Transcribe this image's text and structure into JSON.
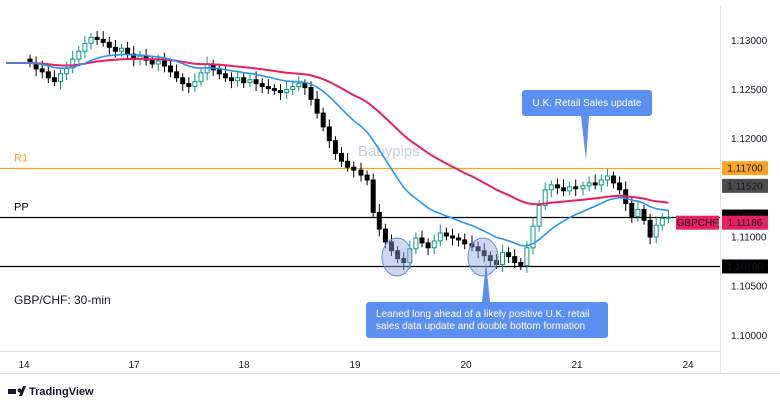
{
  "chart_data": {
    "type": "candlestick",
    "symbol": "GBPCHF",
    "pair_label": "GBP/CHF: 30-min",
    "watermark": "Babypips",
    "brand": "TradingView",
    "x_ticks": [
      "14",
      "17",
      "18",
      "19",
      "20",
      "21",
      "24"
    ],
    "y_ticks": [
      "1.13000",
      "1.12500",
      "1.12000",
      "1.11500",
      "1.11000",
      "1.10500",
      "1.10000"
    ],
    "ylim": [
      1.0985,
      1.1335
    ],
    "levels": [
      {
        "name": "R1",
        "value": 1.117,
        "label": "1.11700",
        "color": "#f7a425"
      },
      {
        "name": "PP",
        "value": 1.11208,
        "label": "1.11208",
        "color": "#000000"
      },
      {
        "name": "",
        "value": 1.107,
        "label": "1.10700",
        "color": "#000000"
      }
    ],
    "price_tags": [
      {
        "label": "1.11520",
        "value": 1.1152,
        "color": "#4b4b4b"
      },
      {
        "label": "1.11186",
        "value": 1.11186,
        "color": "#e91e63"
      }
    ],
    "symbol_tag_color": "#e91e63",
    "annotations": [
      {
        "text": "U.K. Retail Sales update"
      },
      {
        "text_lines": [
          "Leaned long ahead of a likely positive U.K. retail",
          "sales data update and double bottom formation"
        ]
      }
    ],
    "moving_averages": [
      {
        "color": "#2196f3"
      },
      {
        "color": "#e91e63"
      }
    ],
    "colors": {
      "up": "#089981",
      "down": "#000000",
      "callout": "#5b8ff0",
      "circle": "#8ea6e3"
    },
    "close_series": [
      {
        "day": "14",
        "closes": [
          1.1277,
          1.1271,
          1.1268,
          1.1262,
          1.1258,
          1.1266,
          1.1272,
          1.1281,
          1.1289,
          1.1297,
          1.1303,
          1.1301,
          1.1298,
          1.1293,
          1.1289,
          1.1292,
          1.1286,
          1.1281
        ]
      },
      {
        "day": "17",
        "closes": [
          1.1284,
          1.128,
          1.1276,
          1.1279,
          1.1274,
          1.1268,
          1.1262,
          1.1256,
          1.1253,
          1.1258,
          1.1267,
          1.1276,
          1.127,
          1.1266,
          1.1262,
          1.1259,
          1.1262,
          1.1257
        ]
      },
      {
        "day": "18",
        "closes": [
          1.126,
          1.1256,
          1.1253,
          1.1251,
          1.1249,
          1.1247,
          1.125,
          1.1253,
          1.1256,
          1.1252,
          1.124,
          1.1226,
          1.1212,
          1.1198,
          1.1185,
          1.1177,
          1.1171,
          1.1168
        ]
      },
      {
        "day": "19",
        "closes": [
          1.1163,
          1.1158,
          1.1125,
          1.1108,
          1.1095,
          1.1086,
          1.1078,
          1.1074,
          1.1088,
          1.1099,
          1.1094,
          1.1089,
          1.1096,
          1.1104,
          1.1101,
          1.1099,
          1.1097,
          1.1093
        ]
      },
      {
        "day": "20",
        "closes": [
          1.109,
          1.1086,
          1.1081,
          1.1076,
          1.1072,
          1.1084,
          1.108,
          1.1074,
          1.1071,
          1.1089,
          1.1111,
          1.1132,
          1.1148,
          1.1153,
          1.115,
          1.1147,
          1.1151,
          1.1149
        ]
      },
      {
        "day": "21",
        "closes": [
          1.1152,
          1.1155,
          1.1153,
          1.1158,
          1.1162,
          1.1155,
          1.1148,
          1.1134,
          1.1121,
          1.1128,
          1.1117,
          1.11,
          1.1112,
          1.1119,
          1.112
        ]
      }
    ]
  }
}
